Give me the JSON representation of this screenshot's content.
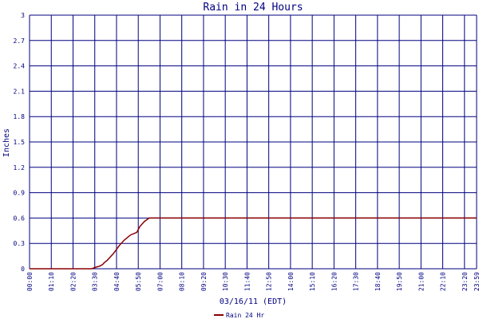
{
  "chart_data": {
    "type": "line",
    "title": "Rain in 24 Hours",
    "xlabel": "03/16/11 (EDT)",
    "ylabel": "Inches",
    "ylim": [
      0,
      3
    ],
    "y_ticks": [
      "0",
      "0.3",
      "0.6",
      "0.9",
      "1.2",
      "1.5",
      "1.8",
      "2.1",
      "2.4",
      "2.7",
      "3"
    ],
    "x_ticks": [
      "00:00",
      "01:10",
      "02:20",
      "03:30",
      "04:40",
      "05:50",
      "07:00",
      "08:10",
      "09:20",
      "10:30",
      "11:40",
      "12:50",
      "14:00",
      "15:10",
      "16:20",
      "17:30",
      "18:40",
      "19:50",
      "21:00",
      "22:10",
      "23:20",
      "23:59"
    ],
    "grid": true,
    "legend_position": "bottom-left",
    "colors": {
      "series": "#8b0000",
      "grid": "#000080",
      "axis_text": "#000080"
    },
    "series": [
      {
        "name": "Rain 24 Hr",
        "x": [
          "00:00",
          "03:20",
          "03:35",
          "03:45",
          "03:55",
          "04:00",
          "04:10",
          "04:30",
          "04:50",
          "05:05",
          "05:25",
          "05:45",
          "05:55",
          "06:10",
          "06:25",
          "06:45",
          "07:30",
          "08:30",
          "09:30",
          "23:59"
        ],
        "y": [
          0.0,
          0.0,
          0.02,
          0.03,
          0.05,
          0.07,
          0.1,
          0.18,
          0.28,
          0.34,
          0.4,
          0.43,
          0.5,
          0.56,
          0.6,
          0.6,
          0.6,
          0.6,
          0.6,
          0.6
        ]
      }
    ]
  }
}
